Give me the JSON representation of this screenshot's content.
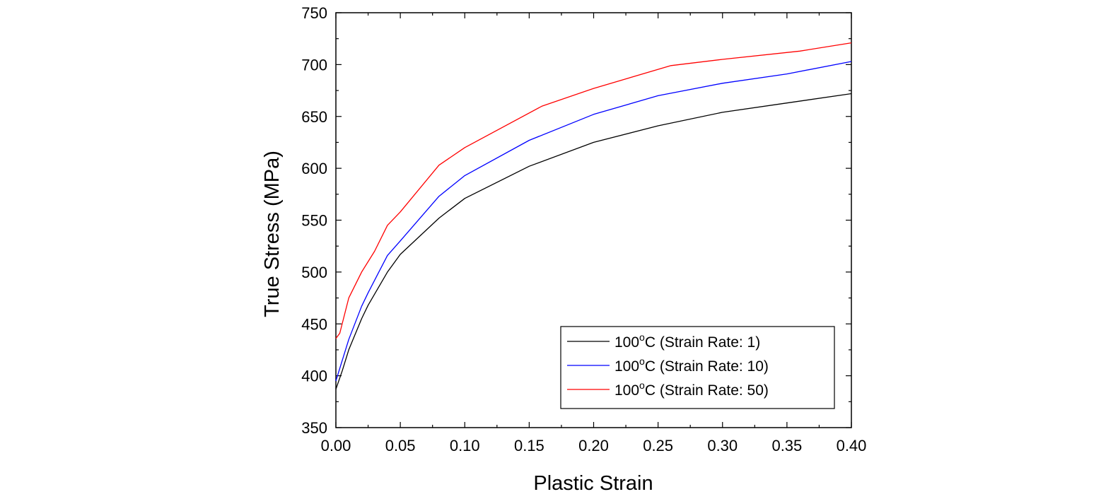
{
  "chart_data": {
    "type": "line",
    "xlabel": "Plastic Strain",
    "ylabel": "True Stress (MPa)",
    "xlim": [
      0.0,
      0.4
    ],
    "ylim": [
      350,
      750
    ],
    "xticks": [
      "0.00",
      "0.05",
      "0.10",
      "0.15",
      "0.20",
      "0.25",
      "0.30",
      "0.35",
      "0.40"
    ],
    "yticks": [
      "350",
      "400",
      "450",
      "500",
      "550",
      "600",
      "650",
      "700",
      "750"
    ],
    "grid": false,
    "legend_position": "bottom-right",
    "series": [
      {
        "name": "100°C (Strain Rate: 1)",
        "legend_prefix": "100",
        "legend_sup": "o",
        "legend_suffix": "C (Strain Rate: 1)",
        "color": "#000000",
        "x": [
          0.0,
          0.005,
          0.01,
          0.02,
          0.025,
          0.04,
          0.05,
          0.08,
          0.1,
          0.15,
          0.2,
          0.25,
          0.3,
          0.35,
          0.4
        ],
        "y": [
          387,
          405,
          425,
          455,
          468,
          500,
          517,
          552,
          571,
          602,
          625,
          641,
          654,
          663,
          672
        ]
      },
      {
        "name": "100°C (Strain Rate: 10)",
        "legend_prefix": "100",
        "legend_sup": "o",
        "legend_suffix": "C (Strain Rate: 10)",
        "color": "#0000ff",
        "x": [
          0.0,
          0.005,
          0.01,
          0.02,
          0.025,
          0.04,
          0.05,
          0.08,
          0.1,
          0.15,
          0.2,
          0.25,
          0.3,
          0.35,
          0.4
        ],
        "y": [
          395,
          415,
          435,
          467,
          480,
          516,
          530,
          573,
          593,
          627,
          652,
          670,
          682,
          691,
          703
        ]
      },
      {
        "name": "100°C (Strain Rate: 50)",
        "legend_prefix": "100",
        "legend_sup": "o",
        "legend_suffix": "C (Strain Rate: 50)",
        "color": "#ff0000",
        "x": [
          0.0,
          0.003,
          0.01,
          0.02,
          0.03,
          0.04,
          0.05,
          0.08,
          0.1,
          0.16,
          0.2,
          0.26,
          0.3,
          0.36,
          0.4
        ],
        "y": [
          436,
          441,
          475,
          500,
          520,
          545,
          558,
          603,
          620,
          660,
          677,
          699,
          705,
          713,
          721
        ]
      }
    ]
  }
}
